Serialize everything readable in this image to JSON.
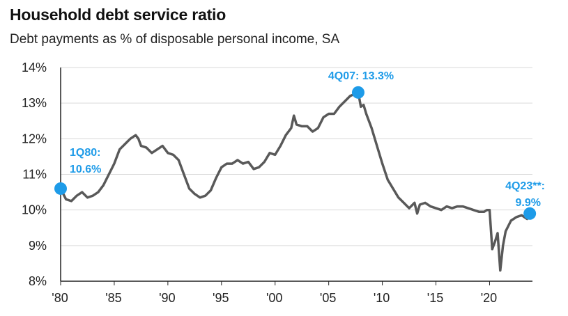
{
  "title": "Household debt service ratio",
  "subtitle": "Debt payments as % of disposable personal income, SA",
  "colors": {
    "line": "#595959",
    "highlight": "#1e9be8",
    "grid": "#d9d9d9"
  },
  "chart_data": {
    "type": "line",
    "title": "Household debt service ratio",
    "subtitle": "Debt payments as % of disposable personal income, SA",
    "xlabel": "",
    "ylabel": "",
    "xlim": [
      1980,
      2024
    ],
    "ylim": [
      8,
      14
    ],
    "x_ticks": [
      "'80",
      "'85",
      "'90",
      "'95",
      "'00",
      "'05",
      "'10",
      "'15",
      "'20"
    ],
    "y_ticks": [
      "8%",
      "9%",
      "10%",
      "11%",
      "12%",
      "13%",
      "14%"
    ],
    "grid": true,
    "series": [
      {
        "x": [
          1980.0,
          1980.5,
          1981.0,
          1981.5,
          1982.0,
          1982.5,
          1983.0,
          1983.5,
          1984.0,
          1984.5,
          1985.0,
          1985.5,
          1986.0,
          1986.5,
          1987.0,
          1987.25,
          1987.5,
          1988.0,
          1988.5,
          1989.0,
          1989.5,
          1990.0,
          1990.5,
          1991.0,
          1991.5,
          1992.0,
          1992.5,
          1993.0,
          1993.5,
          1994.0,
          1994.5,
          1995.0,
          1995.5,
          1996.0,
          1996.5,
          1997.0,
          1997.5,
          1998.0,
          1998.5,
          1999.0,
          1999.5,
          2000.0,
          2000.5,
          2001.0,
          2001.5,
          2001.75,
          2002.0,
          2002.5,
          2003.0,
          2003.5,
          2004.0,
          2004.5,
          2005.0,
          2005.5,
          2006.0,
          2006.5,
          2007.0,
          2007.75,
          2008.0,
          2008.25,
          2008.5,
          2009.0,
          2009.5,
          2010.0,
          2010.5,
          2011.0,
          2011.5,
          2012.0,
          2012.5,
          2013.0,
          2013.25,
          2013.5,
          2014.0,
          2014.5,
          2015.0,
          2015.5,
          2016.0,
          2016.5,
          2017.0,
          2017.5,
          2018.0,
          2018.5,
          2019.0,
          2019.5,
          2019.75,
          2020.0,
          2020.25,
          2020.5,
          2020.75,
          2021.0,
          2021.25,
          2021.5,
          2022.0,
          2022.5,
          2023.0,
          2023.5,
          2023.75
        ],
        "y": [
          10.6,
          10.3,
          10.25,
          10.4,
          10.5,
          10.35,
          10.4,
          10.5,
          10.7,
          11.0,
          11.3,
          11.7,
          11.85,
          12.0,
          12.1,
          12.0,
          11.8,
          11.75,
          11.6,
          11.7,
          11.8,
          11.6,
          11.55,
          11.4,
          11.0,
          10.6,
          10.45,
          10.35,
          10.4,
          10.55,
          10.9,
          11.2,
          11.3,
          11.3,
          11.4,
          11.3,
          11.35,
          11.15,
          11.2,
          11.35,
          11.6,
          11.55,
          11.8,
          12.1,
          12.3,
          12.65,
          12.4,
          12.35,
          12.35,
          12.2,
          12.3,
          12.6,
          12.7,
          12.7,
          12.9,
          13.05,
          13.2,
          13.3,
          12.9,
          12.95,
          12.7,
          12.3,
          11.8,
          11.3,
          10.85,
          10.6,
          10.35,
          10.2,
          10.05,
          10.2,
          9.9,
          10.15,
          10.2,
          10.1,
          10.05,
          10.0,
          10.1,
          10.05,
          10.1,
          10.1,
          10.05,
          10.0,
          9.95,
          9.95,
          10.0,
          10.0,
          8.9,
          9.1,
          9.35,
          8.3,
          9.0,
          9.4,
          9.7,
          9.8,
          9.85,
          9.75,
          9.9
        ]
      }
    ],
    "annotations": [
      {
        "label": "1Q80:",
        "label2": "10.6%",
        "x": 1980.0,
        "y": 10.6
      },
      {
        "label": "4Q07: 13.3%",
        "x": 2007.75,
        "y": 13.3
      },
      {
        "label": "4Q23**:",
        "label2": "9.9%",
        "x": 2023.75,
        "y": 9.9
      }
    ]
  }
}
